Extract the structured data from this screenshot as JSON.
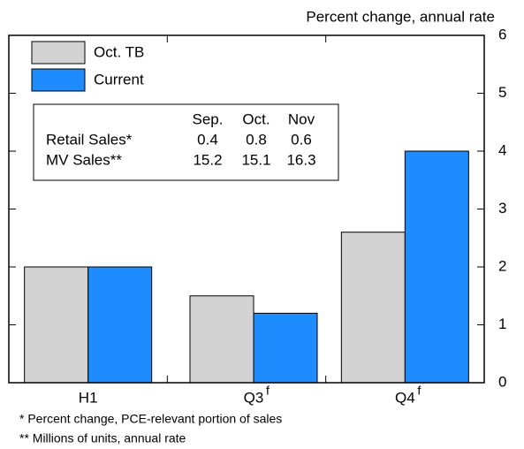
{
  "chart_data": {
    "type": "bar",
    "title": "Percent change, annual rate",
    "categories": [
      "H1",
      "Q3",
      "Q4"
    ],
    "category_superscripts": [
      null,
      "f",
      "f"
    ],
    "series": [
      {
        "name": "Oct. TB",
        "color": "#d3d3d3",
        "values": [
          2.0,
          1.5,
          2.6
        ]
      },
      {
        "name": "Current",
        "color": "#1e8cff",
        "values": [
          2.0,
          1.2,
          4.0
        ]
      }
    ],
    "ylim": [
      0,
      6
    ],
    "yticks": [
      0,
      1,
      2,
      3,
      4,
      5,
      6
    ],
    "legend": "upper left",
    "inset_table": {
      "header": [
        "Sep.",
        "Oct.",
        "Nov"
      ],
      "rows": [
        {
          "label": "Retail Sales*",
          "values": [
            0.4,
            0.8,
            0.6
          ]
        },
        {
          "label": "MV Sales**",
          "values": [
            15.2,
            15.1,
            16.3
          ]
        }
      ]
    },
    "footnotes": [
      "* Percent change, PCE-relevant portion of sales",
      "** Millions of units, annual rate"
    ]
  }
}
